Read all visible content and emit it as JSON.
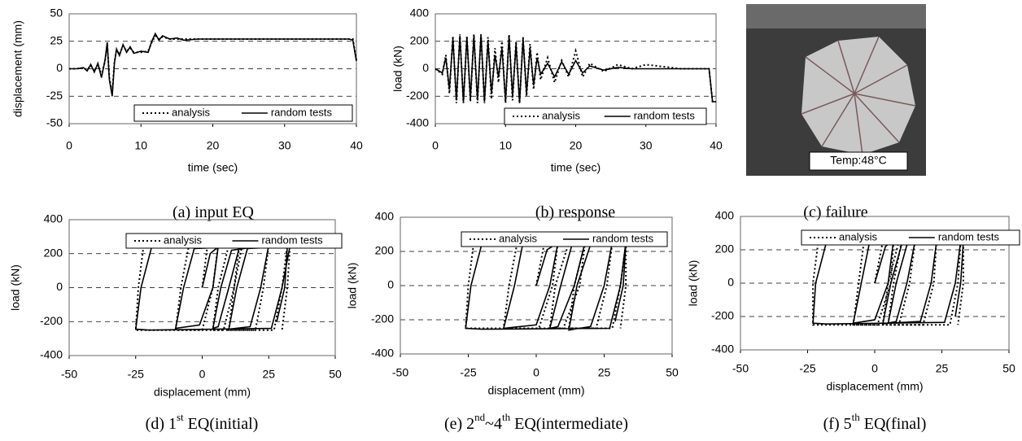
{
  "chart_data": [
    {
      "type": "line",
      "caption": [
        "(a) input EQ"
      ],
      "xlabel": "time (sec)",
      "ylabel": "displacement (mm)",
      "xlim": [
        0,
        40
      ],
      "ylim": [
        -50,
        50
      ],
      "xticks": [
        0,
        10,
        20,
        30,
        40
      ],
      "yticks": [
        -50,
        -25,
        0,
        25,
        50
      ],
      "grid": true,
      "x": [
        0,
        1,
        2,
        2.5,
        3,
        3.5,
        4,
        4.5,
        5,
        5.3,
        5.6,
        6,
        6.3,
        6.6,
        7,
        7.5,
        8,
        8.5,
        9,
        10,
        11,
        11.5,
        12,
        12.5,
        13,
        14,
        15,
        16,
        18,
        20,
        25,
        30,
        35,
        39,
        39.5,
        40
      ],
      "series": [
        {
          "name": "analysis",
          "color": "#000000",
          "style": "dotted",
          "values": [
            0,
            0,
            1,
            -1,
            3,
            -2,
            4,
            -6,
            7,
            22,
            -8,
            -22,
            6,
            17,
            13,
            21,
            16,
            19,
            15,
            15,
            16,
            24,
            30,
            27,
            29,
            27,
            27,
            27,
            27,
            27,
            27,
            27,
            27,
            27,
            27,
            8
          ]
        },
        {
          "name": "random tests",
          "color": "#000000",
          "style": "solid",
          "values": [
            0,
            0,
            1,
            -2,
            4,
            -3,
            5,
            -8,
            8,
            24,
            -10,
            -25,
            5,
            18,
            12,
            22,
            15,
            20,
            14,
            16,
            15,
            25,
            32,
            26,
            30,
            27,
            28,
            26,
            27,
            27,
            27,
            27,
            27,
            27,
            26,
            7
          ]
        }
      ]
    },
    {
      "type": "line",
      "caption": [
        "(b) response"
      ],
      "xlabel": "time (sec)",
      "ylabel": "load (kN)",
      "xlim": [
        0,
        40
      ],
      "ylim": [
        -400,
        400
      ],
      "xticks": [
        0,
        10,
        20,
        30,
        40
      ],
      "yticks": [
        -400,
        -200,
        0,
        200,
        400
      ],
      "grid": true,
      "x": [
        0,
        1,
        1.5,
        2,
        2.5,
        3,
        3.5,
        4,
        4.5,
        5,
        5.5,
        6,
        6.5,
        7,
        7.5,
        8,
        8.5,
        9,
        9.5,
        10,
        10.5,
        11,
        11.5,
        12,
        12.5,
        13,
        13.5,
        14,
        14.5,
        15,
        16,
        17,
        18,
        19,
        20,
        21,
        22,
        24,
        26,
        28,
        30,
        35,
        39,
        39.5,
        40
      ],
      "series": [
        {
          "name": "analysis",
          "color": "#000000",
          "style": "dotted",
          "values": [
            0,
            -40,
            100,
            -180,
            240,
            -250,
            250,
            -250,
            240,
            -240,
            250,
            -250,
            250,
            -250,
            230,
            -220,
            150,
            -100,
            200,
            -250,
            250,
            -230,
            200,
            -250,
            230,
            -200,
            180,
            -150,
            120,
            -80,
            80,
            -100,
            60,
            -60,
            130,
            -60,
            40,
            -20,
            30,
            0,
            30,
            0,
            0,
            -240,
            -240
          ]
        },
        {
          "name": "random tests",
          "color": "#000000",
          "style": "solid",
          "values": [
            0,
            -30,
            80,
            -150,
            220,
            -230,
            240,
            -240,
            230,
            -220,
            240,
            -230,
            250,
            -240,
            200,
            -180,
            100,
            -60,
            150,
            -240,
            240,
            -200,
            180,
            -250,
            220,
            -180,
            150,
            -120,
            80,
            -40,
            40,
            -60,
            50,
            -40,
            60,
            -30,
            20,
            -10,
            10,
            0,
            0,
            0,
            0,
            -240,
            -240
          ]
        }
      ]
    },
    {
      "type": "line",
      "caption": [
        "(d) 1",
        "st",
        " EQ(initial)"
      ],
      "xlabel": "displacement (mm)",
      "ylabel": "load (kN)",
      "xlim": [
        -50,
        50
      ],
      "ylim": [
        -400,
        400
      ],
      "xticks": [
        -50,
        -25,
        0,
        25,
        50
      ],
      "yticks": [
        -400,
        -200,
        0,
        200,
        400
      ],
      "grid": true,
      "series": [
        {
          "name": "analysis",
          "color": "#000000",
          "style": "dotted",
          "x": [
            0,
            2,
            6,
            4,
            0,
            -10,
            -8,
            -5,
            12,
            14,
            12,
            8,
            4,
            6,
            10,
            20,
            25,
            23,
            20,
            10,
            12,
            15,
            30,
            32,
            30,
            27,
            -20,
            -25,
            -24,
            -22,
            30,
            33,
            32,
            30
          ],
          "values": [
            0,
            250,
            250,
            0,
            -250,
            -250,
            0,
            250,
            250,
            250,
            0,
            -250,
            -250,
            0,
            250,
            250,
            250,
            0,
            -250,
            -250,
            0,
            250,
            250,
            250,
            0,
            -250,
            -250,
            -250,
            0,
            250,
            250,
            250,
            0,
            -250
          ]
        },
        {
          "name": "random tests",
          "color": "#000000",
          "style": "solid",
          "x": [
            0,
            3,
            6,
            4,
            -1,
            -10,
            -7,
            -3,
            12,
            14,
            10,
            6,
            4,
            7,
            11,
            20,
            25,
            22,
            18,
            10,
            13,
            17,
            30,
            33,
            30,
            26,
            -20,
            -25,
            -23,
            -19,
            30,
            32,
            31,
            28
          ],
          "values": [
            0,
            200,
            240,
            0,
            -220,
            -240,
            0,
            230,
            240,
            240,
            0,
            -230,
            -240,
            0,
            220,
            240,
            250,
            0,
            -230,
            -245,
            0,
            230,
            240,
            245,
            0,
            -240,
            -250,
            -245,
            0,
            240,
            245,
            240,
            0,
            -200
          ]
        }
      ]
    },
    {
      "type": "line",
      "caption": [
        "(e) 2",
        "nd",
        "~4",
        "th",
        " EQ(intermediate)"
      ],
      "xlabel": "displacement (mm)",
      "ylabel": "load (kN)",
      "xlim": [
        -50,
        50
      ],
      "ylim": [
        -400,
        400
      ],
      "xticks": [
        -50,
        -25,
        0,
        25,
        50
      ],
      "yticks": [
        -400,
        -200,
        0,
        200,
        400
      ],
      "grid": true,
      "series": [
        {
          "name": "analysis",
          "color": "#000000",
          "style": "dotted",
          "x": [
            0,
            3,
            8,
            6,
            1,
            -12,
            -10,
            -7,
            15,
            18,
            16,
            10,
            5,
            7,
            12,
            25,
            28,
            26,
            22,
            12,
            14,
            18,
            31,
            33,
            31,
            28,
            -20,
            -26,
            -25,
            -23,
            30,
            33,
            33,
            31
          ],
          "values": [
            0,
            250,
            250,
            0,
            -250,
            -250,
            0,
            250,
            250,
            250,
            0,
            -250,
            -250,
            0,
            250,
            250,
            250,
            0,
            -250,
            -250,
            0,
            250,
            250,
            250,
            0,
            -250,
            -250,
            -250,
            0,
            250,
            250,
            250,
            0,
            -250
          ]
        },
        {
          "name": "random tests",
          "color": "#000000",
          "style": "solid",
          "x": [
            0,
            4,
            8,
            5,
            0,
            -12,
            -8,
            -5,
            15,
            18,
            14,
            8,
            5,
            9,
            13,
            25,
            28,
            25,
            20,
            12,
            15,
            20,
            31,
            33,
            31,
            27,
            -20,
            -26,
            -24,
            -20,
            30,
            33,
            32,
            29
          ],
          "values": [
            0,
            210,
            250,
            0,
            -230,
            -250,
            0,
            240,
            250,
            255,
            0,
            -240,
            -250,
            0,
            230,
            250,
            255,
            0,
            -240,
            -260,
            0,
            240,
            250,
            255,
            0,
            -250,
            -255,
            -250,
            0,
            245,
            250,
            250,
            0,
            -210
          ]
        }
      ]
    },
    {
      "type": "line",
      "caption": [
        "(f) 5",
        "th",
        " EQ(final)"
      ],
      "xlabel": "displacement  (mm)",
      "ylabel": "load (kN)",
      "xlim": [
        -50,
        50
      ],
      "ylim": [
        -400,
        400
      ],
      "xticks": [
        -50,
        -25,
        0,
        25,
        50
      ],
      "yticks": [
        -400,
        -200,
        0,
        200,
        400
      ],
      "grid": true,
      "series": [
        {
          "name": "analysis",
          "color": "#000000",
          "style": "dotted",
          "x": [
            0,
            3,
            7,
            6,
            1,
            -8,
            -6,
            -4,
            12,
            15,
            13,
            9,
            3,
            5,
            9,
            20,
            23,
            22,
            18,
            5,
            7,
            10,
            28,
            32,
            31,
            28,
            -18,
            -23,
            -23,
            -21,
            30,
            33,
            33,
            31
          ],
          "values": [
            0,
            250,
            250,
            0,
            -250,
            -250,
            0,
            250,
            250,
            250,
            0,
            -250,
            -250,
            0,
            250,
            250,
            250,
            0,
            -250,
            -250,
            0,
            250,
            250,
            250,
            0,
            -250,
            -250,
            -250,
            0,
            250,
            250,
            250,
            0,
            -250
          ]
        },
        {
          "name": "random tests",
          "color": "#000000",
          "style": "solid",
          "x": [
            0,
            4,
            7,
            5,
            0,
            -8,
            -5,
            -2,
            12,
            15,
            12,
            8,
            3,
            6,
            10,
            20,
            23,
            21,
            17,
            5,
            8,
            12,
            28,
            32,
            30,
            26,
            -18,
            -23,
            -22,
            -18,
            30,
            33,
            32,
            30
          ],
          "values": [
            0,
            220,
            260,
            0,
            -220,
            -240,
            0,
            240,
            255,
            250,
            0,
            -230,
            -245,
            0,
            230,
            250,
            245,
            0,
            -230,
            -240,
            0,
            230,
            245,
            250,
            0,
            -235,
            -245,
            -240,
            0,
            245,
            250,
            245,
            0,
            -200
          ]
        }
      ]
    }
  ],
  "photo": {
    "label": "Temp:48°C",
    "caption": [
      "(c) failure"
    ]
  }
}
